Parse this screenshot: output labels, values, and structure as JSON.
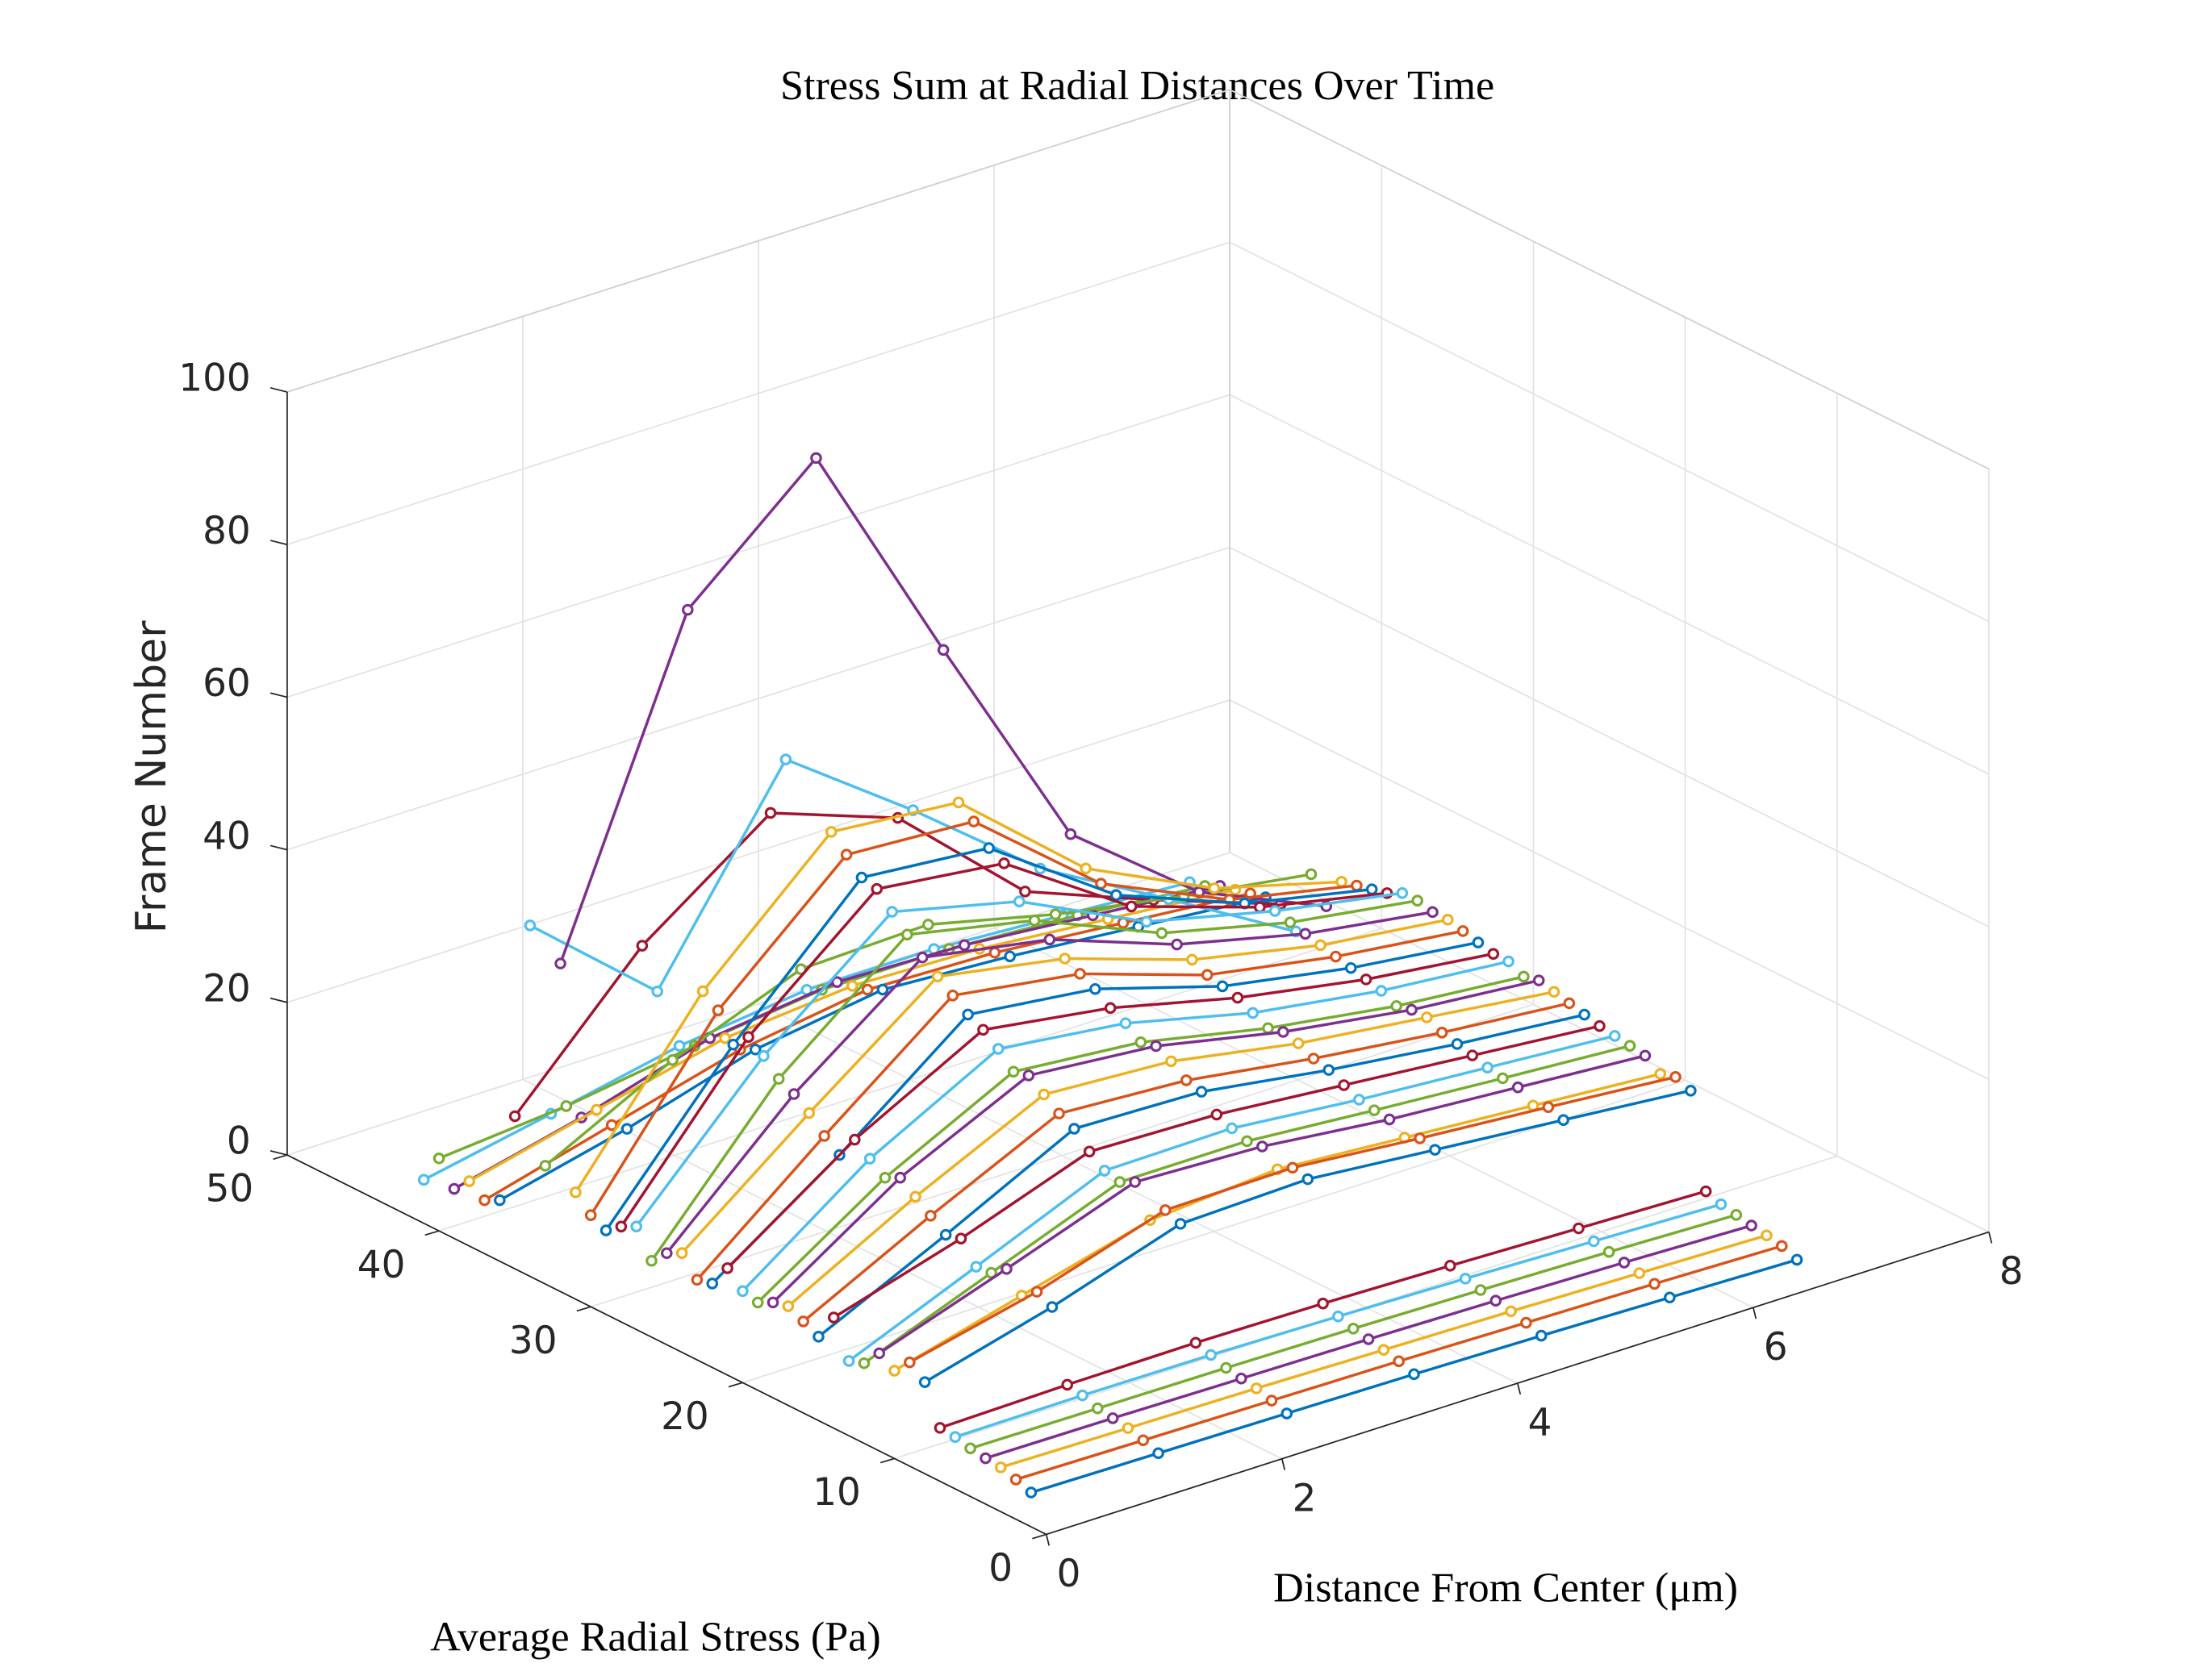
{
  "chart_data": {
    "type": "line3d",
    "title": "Stress Sum at Radial Distances Over Time",
    "xlabel": "Distance From Center (μm)",
    "ylabel": "Average Radial Stress (Pa)",
    "zlabel": "Frame Number",
    "x": [
      0,
      1.08,
      2.17,
      3.25,
      4.33,
      5.42,
      6.5
    ],
    "xlim": [
      0,
      8
    ],
    "xticks": [
      0,
      2,
      4,
      6,
      8
    ],
    "ylim": [
      0,
      50
    ],
    "yticks": [
      0,
      10,
      20,
      30,
      40,
      50
    ],
    "zlim": [
      0,
      100
    ],
    "zticks": [
      0,
      20,
      40,
      60,
      80,
      100
    ],
    "grid": true,
    "series": [
      {
        "y": 1,
        "color": "#0072BD",
        "values": [
          4.5,
          4.3,
          4.1,
          3.9,
          3.6,
          3.2,
          2.8
        ]
      },
      {
        "y": 2,
        "color": "#D95319",
        "values": [
          5.2,
          5.0,
          4.8,
          4.6,
          4.3,
          4.0,
          3.6
        ]
      },
      {
        "y": 3,
        "color": "#EDB120",
        "values": [
          5.8,
          5.6,
          5.4,
          5.1,
          4.8,
          4.4,
          4.0
        ]
      },
      {
        "y": 4,
        "color": "#7E2F8E",
        "values": [
          6.0,
          5.9,
          5.7,
          5.5,
          5.2,
          4.8,
          4.3
        ]
      },
      {
        "y": 5,
        "color": "#77AC30",
        "values": [
          6.3,
          6.2,
          6.1,
          5.9,
          5.6,
          5.2,
          4.7
        ]
      },
      {
        "y": 6,
        "color": "#4DBEEE",
        "values": [
          6.8,
          6.9,
          6.8,
          6.5,
          6.1,
          5.6,
          5.1
        ]
      },
      {
        "y": 7,
        "color": "#A2142F",
        "values": [
          7.0,
          7.3,
          7.4,
          7.2,
          6.8,
          6.3,
          5.8
        ]
      },
      {
        "y": 8,
        "color": "#0072BD",
        "values": [
          12.0,
          16.5,
          22.0,
          22.5,
          21.0,
          19.5,
          18.0
        ]
      },
      {
        "y": 9,
        "color": "#D95319",
        "values": [
          13.6,
          17.5,
          22.8,
          23.0,
          21.5,
          20.2,
          18.8
        ]
      },
      {
        "y": 10,
        "color": "#EDB120",
        "values": [
          11.5,
          16.0,
          20.5,
          21.8,
          20.6,
          19.4,
          18.2
        ]
      },
      {
        "y": 11,
        "color": "#7E2F8E",
        "values": [
          12.8,
          18.5,
          24.5,
          23.8,
          22.0,
          20.8,
          19.6
        ]
      },
      {
        "y": 12,
        "color": "#77AC30",
        "values": [
          10.5,
          17.0,
          23.5,
          23.5,
          22.2,
          21.0,
          19.9
        ]
      },
      {
        "y": 13,
        "color": "#4DBEEE",
        "values": [
          9.8,
          16.8,
          24.0,
          24.2,
          22.6,
          21.4,
          20.2
        ]
      },
      {
        "y": 14,
        "color": "#A2142F",
        "values": [
          14.5,
          19.5,
          25.5,
          25.0,
          23.5,
          22.0,
          20.5
        ]
      },
      {
        "y": 15,
        "color": "#0072BD",
        "values": [
          11.0,
          19.0,
          27.5,
          27.0,
          24.5,
          22.5,
          21.0
        ]
      },
      {
        "y": 16,
        "color": "#D95319",
        "values": [
          12.0,
          20.5,
          28.5,
          27.5,
          25.0,
          23.0,
          21.5
        ]
      },
      {
        "y": 17,
        "color": "#EDB120",
        "values": [
          13.0,
          22.0,
          30.0,
          29.0,
          26.0,
          24.0,
          22.0
        ]
      },
      {
        "y": 18,
        "color": "#7E2F8E",
        "values": [
          12.5,
          23.5,
          31.5,
          30.0,
          26.5,
          24.0,
          22.5
        ]
      },
      {
        "y": 19,
        "color": "#77AC30",
        "values": [
          11.5,
          22.5,
          31.0,
          29.5,
          26.0,
          23.5,
          22.0
        ]
      },
      {
        "y": 20,
        "color": "#4DBEEE",
        "values": [
          12.0,
          24.0,
          33.0,
          31.0,
          27.0,
          24.5,
          23.0
        ]
      },
      {
        "y": 21,
        "color": "#A2142F",
        "values": [
          14.0,
          25.5,
          34.5,
          32.0,
          28.0,
          25.0,
          23.0
        ]
      },
      {
        "y": 22,
        "color": "#0072BD",
        "values": [
          11.0,
          22.5,
          35.5,
          33.5,
          28.5,
          25.5,
          23.5
        ]
      },
      {
        "y": 23,
        "color": "#D95319",
        "values": [
          10.5,
          24.0,
          37.0,
          34.5,
          29.0,
          26.0,
          24.0
        ]
      },
      {
        "y": 24,
        "color": "#EDB120",
        "values": [
          13.0,
          26.0,
          38.5,
          35.5,
          30.0,
          26.5,
          24.5
        ]
      },
      {
        "y": 25,
        "color": "#7E2F8E",
        "values": [
          12.0,
          27.5,
          40.0,
          37.0,
          31.0,
          27.0,
          24.5
        ]
      },
      {
        "y": 26,
        "color": "#77AC30",
        "values": [
          10.0,
          28.5,
          42.0,
          38.5,
          31.5,
          27.5,
          25.0
        ]
      },
      {
        "y": 27,
        "color": "#4DBEEE",
        "values": [
          13.5,
          30.5,
          44.0,
          40.0,
          32.0,
          28.0,
          25.0
        ]
      },
      {
        "y": 28,
        "color": "#A2142F",
        "values": [
          12.5,
          32.0,
          46.0,
          44.0,
          33.0,
          27.5,
          24.0
        ]
      },
      {
        "y": 29,
        "color": "#0072BD",
        "values": [
          11.0,
          30.0,
          46.5,
          45.0,
          33.5,
          27.0,
          23.5
        ]
      },
      {
        "y": 30,
        "color": "#D95319",
        "values": [
          12.0,
          33.5,
          48.5,
          47.5,
          34.0,
          26.5,
          23.0
        ]
      },
      {
        "y": 31,
        "color": "#EDB120",
        "values": [
          14.0,
          35.0,
          50.5,
          49.0,
          35.0,
          27.0,
          22.5
        ]
      },
      {
        "y": 32,
        "color": "#7E2F8E",
        "values": [
          43,
          84,
          98.5,
          68,
          38.5,
          25.5,
          18.3
        ]
      },
      {
        "y": 33,
        "color": "#77AC30",
        "values": [
          15.5,
          24.0,
          30.5,
          31.0,
          27.0,
          24.0,
          21.5
        ]
      },
      {
        "y": 34,
        "color": "#4DBEEE",
        "values": [
          46,
          32,
          57,
          45,
          32,
          22.6,
          13
        ]
      },
      {
        "y": 35,
        "color": "#A2142F",
        "values": [
          20,
          37,
          49,
          43,
          28,
          21.5,
          15.6
        ]
      },
      {
        "y": 36,
        "color": "#0072BD",
        "values": [
          8.0,
          12.0,
          17.0,
          19.5,
          18.5,
          17.0,
          15.5
        ]
      },
      {
        "y": 37,
        "color": "#D95319",
        "values": [
          7.0,
          11.5,
          16.0,
          18.5,
          18.0,
          16.5,
          15.0
        ]
      },
      {
        "y": 38,
        "color": "#EDB120",
        "values": [
          8.5,
          12.5,
          16.5,
          18.0,
          17.5,
          16.0,
          14.5
        ]
      },
      {
        "y": 39,
        "color": "#7E2F8E",
        "values": [
          6.5,
          10.5,
          15.5,
          17.5,
          17.0,
          15.5,
          14.0
        ]
      },
      {
        "y": 40,
        "color": "#77AC30",
        "values": [
          9.5,
          11.0,
          13.5,
          15.5,
          15.5,
          14.5,
          13.0
        ]
      },
      {
        "y": 41,
        "color": "#4DBEEE",
        "values": [
          5.7,
          9.0,
          12.5,
          14.5,
          14.5,
          13.5,
          12.5
        ]
      }
    ]
  }
}
